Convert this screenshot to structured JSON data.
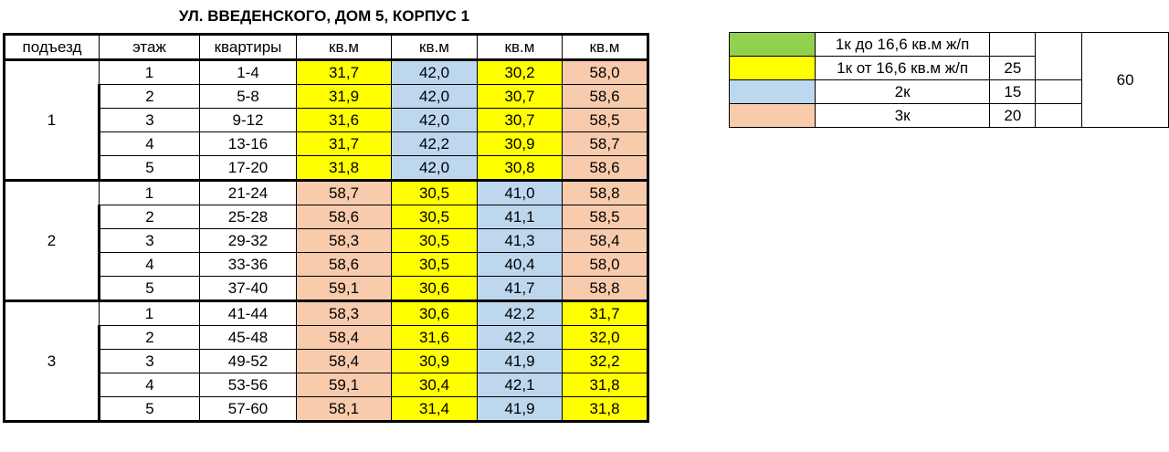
{
  "title": "УЛ. ВВЕДЕНСКОГО, ДОМ 5, КОРПУС 1",
  "headers": [
    "подъезд",
    "этаж",
    "квартиры",
    "кв.м",
    "кв.м",
    "кв.м",
    "кв.м"
  ],
  "colors": {
    "green": "#92d050",
    "yellow": "#ffff00",
    "blue": "#bdd7ee",
    "peach": "#f8cbad"
  },
  "entrances": [
    {
      "label": "1",
      "floors": [
        {
          "floor": "1",
          "apts": "1-4",
          "areas": [
            "31,7",
            "42,0",
            "30,2",
            "58,0"
          ],
          "colors": [
            "yellow",
            "blue",
            "yellow",
            "peach"
          ]
        },
        {
          "floor": "2",
          "apts": "5-8",
          "areas": [
            "31,9",
            "42,0",
            "30,7",
            "58,6"
          ],
          "colors": [
            "yellow",
            "blue",
            "yellow",
            "peach"
          ]
        },
        {
          "floor": "3",
          "apts": "9-12",
          "areas": [
            "31,6",
            "42,0",
            "30,7",
            "58,5"
          ],
          "colors": [
            "yellow",
            "blue",
            "yellow",
            "peach"
          ]
        },
        {
          "floor": "4",
          "apts": "13-16",
          "areas": [
            "31,7",
            "42,2",
            "30,9",
            "58,7"
          ],
          "colors": [
            "yellow",
            "blue",
            "yellow",
            "peach"
          ]
        },
        {
          "floor": "5",
          "apts": "17-20",
          "areas": [
            "31,8",
            "42,0",
            "30,8",
            "58,6"
          ],
          "colors": [
            "yellow",
            "blue",
            "yellow",
            "peach"
          ]
        }
      ]
    },
    {
      "label": "2",
      "floors": [
        {
          "floor": "1",
          "apts": "21-24",
          "areas": [
            "58,7",
            "30,5",
            "41,0",
            "58,8"
          ],
          "colors": [
            "peach",
            "yellow",
            "blue",
            "peach"
          ]
        },
        {
          "floor": "2",
          "apts": "25-28",
          "areas": [
            "58,6",
            "30,5",
            "41,1",
            "58,5"
          ],
          "colors": [
            "peach",
            "yellow",
            "blue",
            "peach"
          ]
        },
        {
          "floor": "3",
          "apts": "29-32",
          "areas": [
            "58,3",
            "30,5",
            "41,3",
            "58,4"
          ],
          "colors": [
            "peach",
            "yellow",
            "blue",
            "peach"
          ]
        },
        {
          "floor": "4",
          "apts": "33-36",
          "areas": [
            "58,6",
            "30,5",
            "40,4",
            "58,0"
          ],
          "colors": [
            "peach",
            "yellow",
            "blue",
            "peach"
          ]
        },
        {
          "floor": "5",
          "apts": "37-40",
          "areas": [
            "59,1",
            "30,6",
            "41,7",
            "58,8"
          ],
          "colors": [
            "peach",
            "yellow",
            "blue",
            "peach"
          ]
        }
      ]
    },
    {
      "label": "3",
      "floors": [
        {
          "floor": "1",
          "apts": "41-44",
          "areas": [
            "58,3",
            "30,6",
            "42,2",
            "31,7"
          ],
          "colors": [
            "peach",
            "yellow",
            "blue",
            "yellow"
          ]
        },
        {
          "floor": "2",
          "apts": "45-48",
          "areas": [
            "58,4",
            "31,6",
            "42,2",
            "32,0"
          ],
          "colors": [
            "peach",
            "yellow",
            "blue",
            "yellow"
          ]
        },
        {
          "floor": "3",
          "apts": "49-52",
          "areas": [
            "58,4",
            "30,9",
            "41,9",
            "32,2"
          ],
          "colors": [
            "peach",
            "yellow",
            "blue",
            "yellow"
          ]
        },
        {
          "floor": "4",
          "apts": "53-56",
          "areas": [
            "59,1",
            "30,4",
            "42,1",
            "31,8"
          ],
          "colors": [
            "peach",
            "yellow",
            "blue",
            "yellow"
          ]
        },
        {
          "floor": "5",
          "apts": "57-60",
          "areas": [
            "58,1",
            "31,4",
            "41,9",
            "31,8"
          ],
          "colors": [
            "peach",
            "yellow",
            "blue",
            "yellow"
          ]
        }
      ]
    }
  ],
  "legend": {
    "rows": [
      {
        "color": "green",
        "label": "1к до 16,6 кв.м ж/п",
        "count": ""
      },
      {
        "color": "yellow",
        "label": "1к от 16,6 кв.м ж/п",
        "count": "25"
      },
      {
        "color": "blue",
        "label": "2к",
        "count": "15"
      },
      {
        "color": "peach",
        "label": "3к",
        "count": "20"
      }
    ],
    "total": "60"
  }
}
